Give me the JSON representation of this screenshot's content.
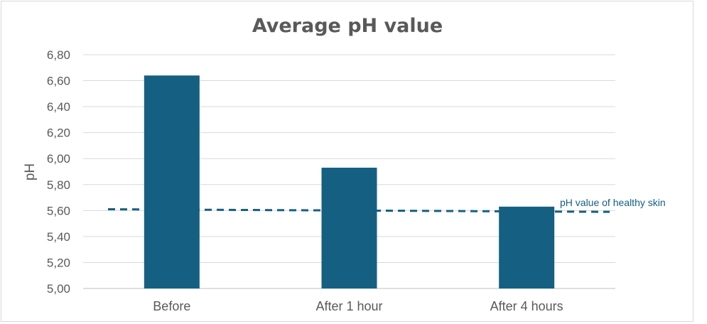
{
  "chart_data": {
    "type": "bar",
    "title": "Average pH value",
    "xlabel": "",
    "ylabel": "pH",
    "ylim": [
      5.0,
      6.8
    ],
    "yticks": [
      "5,00",
      "5,20",
      "5,40",
      "5,60",
      "5,80",
      "6,00",
      "6,20",
      "6,40",
      "6,60",
      "6,80"
    ],
    "yticks_values": [
      5.0,
      5.2,
      5.4,
      5.6,
      5.8,
      6.0,
      6.2,
      6.4,
      6.6,
      6.8
    ],
    "categories": [
      "Before",
      "After 1 hour",
      "After 4 hours"
    ],
    "values": [
      6.64,
      5.93,
      5.63
    ],
    "grid": true,
    "bar_color": "#156082",
    "reference_line": {
      "label": "pH value of healthy skin",
      "start": 5.61,
      "end": 5.59,
      "style": "dashed",
      "color": "#156082"
    }
  }
}
